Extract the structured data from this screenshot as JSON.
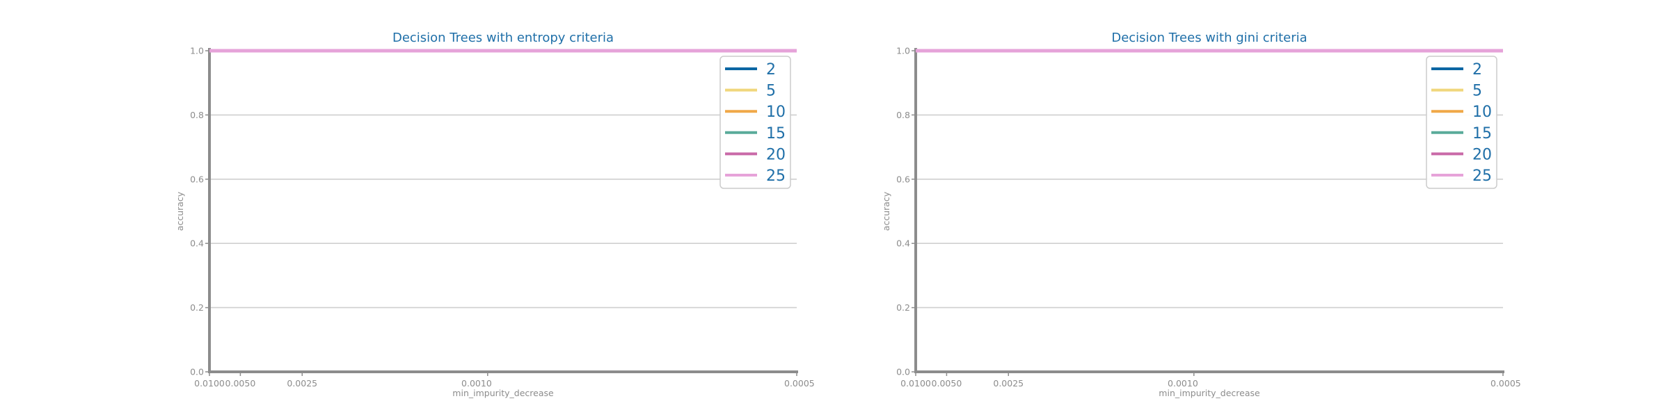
{
  "chart_data": [
    {
      "type": "line",
      "title": "Decision Trees with entropy criteria",
      "xlabel": "min_impurity_decrease",
      "ylabel": "accuracy",
      "x_scale": "reciprocal",
      "x": [
        0.01,
        0.005,
        0.0025,
        0.001,
        0.0005
      ],
      "x_tick_labels": [
        "0.0100",
        "0.0050",
        "0.0025",
        "0.0010",
        "0.0005"
      ],
      "ylim": [
        0,
        1
      ],
      "y_ticks": [
        0.0,
        0.2,
        0.4,
        0.6,
        0.8,
        1.0
      ],
      "y_tick_labels": [
        "0.0",
        "0.2",
        "0.4",
        "0.6",
        "0.8",
        "1.0"
      ],
      "grid": "horizontal",
      "legend_position": "top-right",
      "series": [
        {
          "name": "2",
          "color": "#0b66a3",
          "values": [
            1.0,
            1.0,
            1.0,
            1.0,
            1.0
          ]
        },
        {
          "name": "5",
          "color": "#f0d77c",
          "values": [
            1.0,
            1.0,
            1.0,
            1.0,
            1.0
          ]
        },
        {
          "name": "10",
          "color": "#f0a848",
          "values": [
            1.0,
            1.0,
            1.0,
            1.0,
            1.0
          ]
        },
        {
          "name": "15",
          "color": "#5aab9a",
          "values": [
            1.0,
            1.0,
            1.0,
            1.0,
            1.0
          ]
        },
        {
          "name": "20",
          "color": "#c96aa8",
          "values": [
            1.0,
            1.0,
            1.0,
            1.0,
            1.0
          ]
        },
        {
          "name": "25",
          "color": "#e6a3d9",
          "values": [
            1.0,
            1.0,
            1.0,
            1.0,
            1.0
          ]
        }
      ]
    },
    {
      "type": "line",
      "title": "Decision Trees with gini criteria",
      "xlabel": "min_impurity_decrease",
      "ylabel": "accuracy",
      "x_scale": "reciprocal",
      "x": [
        0.01,
        0.005,
        0.0025,
        0.001,
        0.0005
      ],
      "x_tick_labels": [
        "0.0100",
        "0.0050",
        "0.0025",
        "0.0010",
        "0.0005"
      ],
      "ylim": [
        0,
        1
      ],
      "y_ticks": [
        0.0,
        0.2,
        0.4,
        0.6,
        0.8,
        1.0
      ],
      "y_tick_labels": [
        "0.0",
        "0.2",
        "0.4",
        "0.6",
        "0.8",
        "1.0"
      ],
      "grid": "horizontal",
      "legend_position": "top-right",
      "series": [
        {
          "name": "2",
          "color": "#0b66a3",
          "values": [
            1.0,
            1.0,
            1.0,
            1.0,
            1.0
          ]
        },
        {
          "name": "5",
          "color": "#f0d77c",
          "values": [
            1.0,
            1.0,
            1.0,
            1.0,
            1.0
          ]
        },
        {
          "name": "10",
          "color": "#f0a848",
          "values": [
            1.0,
            1.0,
            1.0,
            1.0,
            1.0
          ]
        },
        {
          "name": "15",
          "color": "#5aab9a",
          "values": [
            1.0,
            1.0,
            1.0,
            1.0,
            1.0
          ]
        },
        {
          "name": "20",
          "color": "#c96aa8",
          "values": [
            1.0,
            1.0,
            1.0,
            1.0,
            1.0
          ]
        },
        {
          "name": "25",
          "color": "#e6a3d9",
          "values": [
            1.0,
            1.0,
            1.0,
            1.0,
            1.0
          ]
        }
      ]
    }
  ]
}
